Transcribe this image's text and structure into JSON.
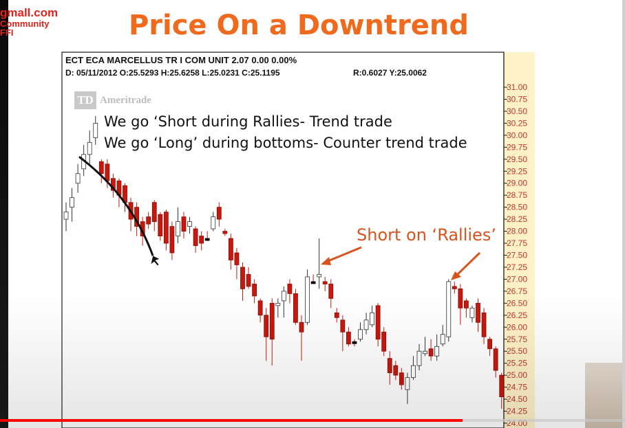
{
  "watermark": {
    "line1": "gmall.com",
    "line2": "Community",
    "line3": "FFI"
  },
  "slide_title": "Price On a Downtrend",
  "header": {
    "line1": "ECT ECA MARCELLUS TR I COM UNIT  2.07  0.00  0.00%",
    "line2_left": "D: 05/11/2012 O:25.5293 H:25.6258 L:25.0231 C:25.1195",
    "line2_right": "R:0.6027  Y:25.0062"
  },
  "brand": {
    "logo_text": "TD",
    "name": "Ameritrade"
  },
  "notes": [
    "We go ‘Short during Rallies- Trend trade",
    "We go ‘Long’ during bottoms- Counter trend trade"
  ],
  "callout": "Short on ‘Rallies’",
  "video": {
    "progress": 0.74
  },
  "colors": {
    "up_candle": "#ffffff",
    "down_candle": "#c8180e",
    "doji": "#000000",
    "axis_text": "#c0362c",
    "axis_bg": "#fdf1c7",
    "annotation": "#d9531e",
    "title": "#f06a1e"
  },
  "chart_data": {
    "type": "candlestick",
    "title": "",
    "ylim": [
      24.0,
      31.0
    ],
    "y_ticks": [
      "31.00",
      "30.75",
      "30.50",
      "30.25",
      "30.00",
      "29.75",
      "29.50",
      "29.25",
      "29.00",
      "28.75",
      "28.50",
      "28.25",
      "28.00",
      "27.75",
      "27.50",
      "27.25",
      "27.00",
      "26.75",
      "26.50",
      "26.25",
      "26.00",
      "25.75",
      "25.50",
      "25.25",
      "25.00",
      "24.75",
      "24.50",
      "24.25",
      "24.00"
    ],
    "candles": [
      {
        "o": 28.25,
        "h": 28.6,
        "l": 28.0,
        "c": 28.4
      },
      {
        "o": 28.5,
        "h": 28.9,
        "l": 28.2,
        "c": 28.7
      },
      {
        "o": 29.0,
        "h": 29.4,
        "l": 28.8,
        "c": 29.2
      },
      {
        "o": 29.3,
        "h": 29.8,
        "l": 29.15,
        "c": 29.6
      },
      {
        "o": 29.6,
        "h": 30.1,
        "l": 29.4,
        "c": 29.85
      },
      {
        "o": 29.95,
        "h": 30.4,
        "l": 29.8,
        "c": 30.25
      },
      {
        "o": 29.45,
        "h": 29.5,
        "l": 29.0,
        "c": 29.2
      },
      {
        "o": 29.4,
        "h": 29.5,
        "l": 28.9,
        "c": 29.05
      },
      {
        "o": 29.1,
        "h": 29.2,
        "l": 28.7,
        "c": 28.85
      },
      {
        "o": 29.05,
        "h": 29.1,
        "l": 28.5,
        "c": 28.75
      },
      {
        "o": 28.95,
        "h": 29.0,
        "l": 28.4,
        "c": 28.6
      },
      {
        "o": 28.6,
        "h": 28.7,
        "l": 28.0,
        "c": 28.25
      },
      {
        "o": 28.5,
        "h": 28.6,
        "l": 27.9,
        "c": 28.1
      },
      {
        "o": 28.2,
        "h": 28.3,
        "l": 27.7,
        "c": 27.9
      },
      {
        "o": 28.3,
        "h": 28.4,
        "l": 28.05,
        "c": 28.15
      },
      {
        "o": 28.6,
        "h": 28.65,
        "l": 28.0,
        "c": 28.2
      },
      {
        "o": 28.35,
        "h": 28.4,
        "l": 27.8,
        "c": 27.9
      },
      {
        "o": 28.4,
        "h": 28.45,
        "l": 27.6,
        "c": 27.75
      },
      {
        "o": 28.1,
        "h": 28.2,
        "l": 27.4,
        "c": 27.55
      },
      {
        "o": 27.9,
        "h": 28.5,
        "l": 27.75,
        "c": 28.2
      },
      {
        "o": 28.3,
        "h": 28.4,
        "l": 27.85,
        "c": 28.0
      },
      {
        "o": 28.1,
        "h": 28.3,
        "l": 27.95,
        "c": 28.2
      },
      {
        "o": 28.05,
        "h": 28.1,
        "l": 27.55,
        "c": 27.7
      },
      {
        "o": 27.9,
        "h": 28.0,
        "l": 27.6,
        "c": 27.75
      },
      {
        "o": 27.85,
        "h": 28.0,
        "l": 27.8,
        "c": 27.85
      },
      {
        "o": 28.05,
        "h": 28.4,
        "l": 28.0,
        "c": 28.3
      },
      {
        "o": 28.5,
        "h": 28.6,
        "l": 28.1,
        "c": 28.25
      },
      {
        "o": 28.0,
        "h": 28.05,
        "l": 27.9,
        "c": 27.95
      },
      {
        "o": 27.85,
        "h": 27.95,
        "l": 27.2,
        "c": 27.4
      },
      {
        "o": 27.55,
        "h": 27.65,
        "l": 27.0,
        "c": 27.3
      },
      {
        "o": 27.25,
        "h": 27.35,
        "l": 26.55,
        "c": 26.8
      },
      {
        "o": 27.1,
        "h": 27.25,
        "l": 26.8,
        "c": 26.85
      },
      {
        "o": 26.9,
        "h": 27.0,
        "l": 26.5,
        "c": 26.65
      },
      {
        "o": 26.55,
        "h": 26.6,
        "l": 26.1,
        "c": 26.25
      },
      {
        "o": 26.25,
        "h": 26.4,
        "l": 25.3,
        "c": 25.8
      },
      {
        "o": 26.5,
        "h": 26.6,
        "l": 25.2,
        "c": 25.75
      },
      {
        "o": 26.45,
        "h": 26.6,
        "l": 26.2,
        "c": 26.5
      },
      {
        "o": 26.55,
        "h": 26.85,
        "l": 26.2,
        "c": 26.75
      },
      {
        "o": 26.9,
        "h": 27.0,
        "l": 26.5,
        "c": 26.7
      },
      {
        "o": 26.7,
        "h": 26.8,
        "l": 26.05,
        "c": 26.1
      },
      {
        "o": 26.1,
        "h": 26.25,
        "l": 25.3,
        "c": 25.9
      },
      {
        "o": 26.1,
        "h": 27.2,
        "l": 26.05,
        "c": 27.05
      },
      {
        "o": 26.95,
        "h": 27.1,
        "l": 26.9,
        "c": 26.95
      },
      {
        "o": 27.05,
        "h": 27.85,
        "l": 26.8,
        "c": 27.1
      },
      {
        "o": 26.95,
        "h": 27.05,
        "l": 26.75,
        "c": 26.9
      },
      {
        "o": 26.9,
        "h": 27.0,
        "l": 26.4,
        "c": 26.6
      },
      {
        "o": 26.3,
        "h": 26.4,
        "l": 26.1,
        "c": 26.2
      },
      {
        "o": 26.15,
        "h": 26.25,
        "l": 25.5,
        "c": 25.9
      },
      {
        "o": 25.9,
        "h": 26.0,
        "l": 25.6,
        "c": 25.65
      },
      {
        "o": 25.7,
        "h": 25.75,
        "l": 25.6,
        "c": 25.7
      },
      {
        "o": 25.75,
        "h": 26.1,
        "l": 25.7,
        "c": 25.95
      },
      {
        "o": 25.95,
        "h": 26.3,
        "l": 25.85,
        "c": 26.15
      },
      {
        "o": 26.05,
        "h": 26.45,
        "l": 26.0,
        "c": 26.3
      },
      {
        "o": 26.45,
        "h": 26.5,
        "l": 25.6,
        "c": 25.75
      },
      {
        "o": 25.9,
        "h": 26.0,
        "l": 25.4,
        "c": 25.5
      },
      {
        "o": 25.35,
        "h": 25.5,
        "l": 24.8,
        "c": 25.05
      },
      {
        "o": 25.2,
        "h": 25.3,
        "l": 24.9,
        "c": 25.0
      },
      {
        "o": 25.05,
        "h": 25.15,
        "l": 24.7,
        "c": 24.8
      },
      {
        "o": 24.7,
        "h": 25.05,
        "l": 24.4,
        "c": 24.95
      },
      {
        "o": 24.95,
        "h": 25.4,
        "l": 24.9,
        "c": 25.2
      },
      {
        "o": 25.2,
        "h": 25.65,
        "l": 25.1,
        "c": 25.5
      },
      {
        "o": 25.45,
        "h": 25.8,
        "l": 25.4,
        "c": 25.5
      },
      {
        "o": 25.55,
        "h": 25.75,
        "l": 25.3,
        "c": 25.4
      },
      {
        "o": 25.4,
        "h": 25.85,
        "l": 25.3,
        "c": 25.6
      },
      {
        "o": 25.65,
        "h": 26.05,
        "l": 25.6,
        "c": 25.85
      },
      {
        "o": 25.8,
        "h": 27.0,
        "l": 25.7,
        "c": 26.95
      },
      {
        "o": 26.85,
        "h": 26.95,
        "l": 26.7,
        "c": 26.8
      },
      {
        "o": 26.8,
        "h": 26.9,
        "l": 26.05,
        "c": 26.4
      },
      {
        "o": 26.55,
        "h": 26.6,
        "l": 26.2,
        "c": 26.4
      },
      {
        "o": 26.2,
        "h": 26.45,
        "l": 26.1,
        "c": 26.4
      },
      {
        "o": 26.5,
        "h": 26.6,
        "l": 25.9,
        "c": 26.1
      },
      {
        "o": 26.3,
        "h": 26.4,
        "l": 25.65,
        "c": 25.8
      },
      {
        "o": 25.75,
        "h": 25.8,
        "l": 25.4,
        "c": 25.55
      },
      {
        "o": 25.55,
        "h": 25.6,
        "l": 24.95,
        "c": 25.1
      },
      {
        "o": 25.0,
        "h": 25.05,
        "l": 24.3,
        "c": 24.55
      }
    ]
  }
}
